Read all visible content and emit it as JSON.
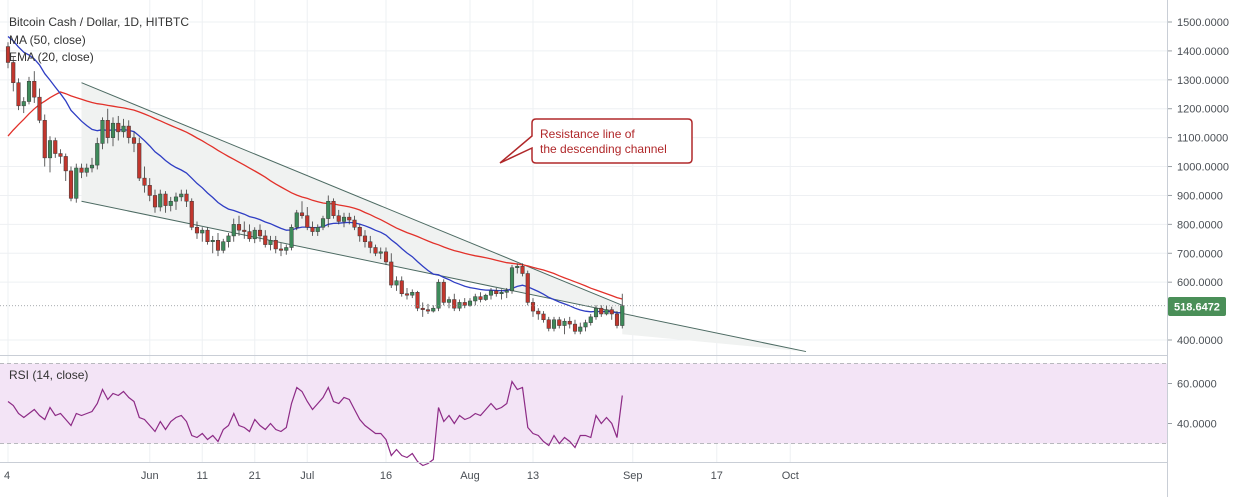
{
  "header": {
    "title": "Bitcoin Cash / Dollar, 1D, HITBTC",
    "ma_label": "MA (50, close)",
    "ema_label": "EMA (20, close)"
  },
  "rsi": {
    "label": "RSI (14, close)",
    "ticks": [
      "60.0000",
      "40.0000"
    ],
    "levels": [
      70,
      30
    ]
  },
  "annotation": {
    "line1": "Resistance line of",
    "line2": "the descending channel"
  },
  "colors": {
    "up": "#3d8a5a",
    "down": "#c2362d",
    "ma": "#e2312a",
    "ema": "#2f3ec4",
    "channel": "#4d6b63",
    "channel_fill": "#f0f2f1",
    "rsi": "#8d2b86",
    "rsi_band": "#f3e4f6",
    "callout": "#b0282a",
    "last_price_bg": "#4a8f58"
  },
  "chart_data": {
    "type": "candlestick",
    "title": "Bitcoin Cash / Dollar, 1D, HITBTC",
    "y_ticks": [
      "1500.0000",
      "1400.0000",
      "1300.0000",
      "1200.0000",
      "1100.0000",
      "1000.0000",
      "900.0000",
      "800.0000",
      "700.0000",
      "600.0000",
      "400.0000"
    ],
    "ylim": [
      360,
      1520
    ],
    "x_ticks": [
      {
        "label": "4",
        "day": 0
      },
      {
        "label": "Jun",
        "day": 27
      },
      {
        "label": "11",
        "day": 37
      },
      {
        "label": "21",
        "day": 47
      },
      {
        "label": "Jul",
        "day": 57
      },
      {
        "label": "16",
        "day": 72
      },
      {
        "label": "Aug",
        "day": 88
      },
      {
        "label": "13",
        "day": 100
      },
      {
        "label": "Sep",
        "day": 119
      },
      {
        "label": "17",
        "day": 135
      },
      {
        "label": "Oct",
        "day": 149
      }
    ],
    "last_price": "518.6472",
    "last_value": 518.6,
    "ohlc": [
      [
        1415,
        1430,
        1340,
        1360
      ],
      [
        1360,
        1380,
        1260,
        1290
      ],
      [
        1290,
        1305,
        1195,
        1210
      ],
      [
        1210,
        1240,
        1185,
        1225
      ],
      [
        1225,
        1310,
        1215,
        1295
      ],
      [
        1295,
        1330,
        1220,
        1240
      ],
      [
        1240,
        1270,
        1150,
        1160
      ],
      [
        1160,
        1180,
        1000,
        1030
      ],
      [
        1030,
        1105,
        980,
        1090
      ],
      [
        1090,
        1100,
        1030,
        1045
      ],
      [
        1045,
        1060,
        1010,
        1035
      ],
      [
        1035,
        1045,
        950,
        985
      ],
      [
        985,
        1000,
        880,
        890
      ],
      [
        890,
        1010,
        875,
        995
      ],
      [
        995,
        1010,
        960,
        980
      ],
      [
        980,
        1010,
        965,
        995
      ],
      [
        995,
        1030,
        980,
        1005
      ],
      [
        1005,
        1100,
        990,
        1080
      ],
      [
        1080,
        1170,
        1060,
        1160
      ],
      [
        1160,
        1200,
        1080,
        1100
      ],
      [
        1100,
        1170,
        1070,
        1150
      ],
      [
        1150,
        1175,
        1090,
        1120
      ],
      [
        1120,
        1165,
        1100,
        1140
      ],
      [
        1140,
        1160,
        1080,
        1100
      ],
      [
        1100,
        1120,
        1050,
        1080
      ],
      [
        1080,
        1100,
        950,
        960
      ],
      [
        960,
        1000,
        910,
        935
      ],
      [
        935,
        960,
        880,
        900
      ],
      [
        900,
        920,
        840,
        860
      ],
      [
        860,
        920,
        845,
        905
      ],
      [
        905,
        915,
        840,
        865
      ],
      [
        865,
        895,
        845,
        880
      ],
      [
        880,
        910,
        850,
        895
      ],
      [
        895,
        920,
        880,
        905
      ],
      [
        905,
        920,
        860,
        880
      ],
      [
        880,
        890,
        780,
        790
      ],
      [
        790,
        810,
        750,
        770
      ],
      [
        770,
        790,
        740,
        780
      ],
      [
        780,
        790,
        730,
        740
      ],
      [
        740,
        760,
        700,
        745
      ],
      [
        745,
        770,
        690,
        710
      ],
      [
        710,
        750,
        700,
        740
      ],
      [
        740,
        770,
        720,
        760
      ],
      [
        760,
        820,
        740,
        800
      ],
      [
        800,
        830,
        760,
        780
      ],
      [
        780,
        810,
        750,
        775
      ],
      [
        775,
        800,
        740,
        750
      ],
      [
        750,
        790,
        735,
        780
      ],
      [
        780,
        800,
        740,
        760
      ],
      [
        760,
        780,
        720,
        730
      ],
      [
        730,
        760,
        710,
        745
      ],
      [
        745,
        760,
        700,
        715
      ],
      [
        715,
        735,
        690,
        710
      ],
      [
        710,
        730,
        695,
        720
      ],
      [
        720,
        800,
        710,
        790
      ],
      [
        790,
        850,
        780,
        840
      ],
      [
        840,
        880,
        820,
        830
      ],
      [
        830,
        860,
        780,
        790
      ],
      [
        790,
        810,
        760,
        775
      ],
      [
        775,
        800,
        760,
        790
      ],
      [
        790,
        830,
        780,
        820
      ],
      [
        820,
        900,
        790,
        880
      ],
      [
        880,
        890,
        820,
        830
      ],
      [
        830,
        850,
        800,
        810
      ],
      [
        810,
        840,
        790,
        825
      ],
      [
        825,
        840,
        800,
        815
      ],
      [
        815,
        830,
        780,
        790
      ],
      [
        790,
        800,
        740,
        760
      ],
      [
        760,
        780,
        720,
        740
      ],
      [
        740,
        760,
        700,
        720
      ],
      [
        720,
        730,
        690,
        700
      ],
      [
        700,
        720,
        680,
        705
      ],
      [
        705,
        720,
        660,
        670
      ],
      [
        670,
        700,
        580,
        590
      ],
      [
        590,
        620,
        570,
        605
      ],
      [
        605,
        620,
        550,
        560
      ],
      [
        560,
        580,
        540,
        555
      ],
      [
        555,
        575,
        545,
        565
      ],
      [
        565,
        570,
        500,
        510
      ],
      [
        510,
        530,
        480,
        505
      ],
      [
        505,
        525,
        490,
        500
      ],
      [
        500,
        520,
        495,
        510
      ],
      [
        510,
        610,
        500,
        600
      ],
      [
        600,
        610,
        520,
        530
      ],
      [
        530,
        550,
        510,
        540
      ],
      [
        540,
        560,
        500,
        510
      ],
      [
        510,
        540,
        500,
        530
      ],
      [
        530,
        545,
        510,
        520
      ],
      [
        520,
        545,
        515,
        535
      ],
      [
        535,
        560,
        520,
        550
      ],
      [
        550,
        565,
        530,
        540
      ],
      [
        540,
        560,
        535,
        555
      ],
      [
        555,
        580,
        540,
        570
      ],
      [
        570,
        580,
        550,
        560
      ],
      [
        560,
        575,
        540,
        565
      ],
      [
        565,
        580,
        545,
        570
      ],
      [
        570,
        660,
        560,
        650
      ],
      [
        650,
        665,
        630,
        655
      ],
      [
        655,
        665,
        620,
        630
      ],
      [
        630,
        640,
        520,
        530
      ],
      [
        530,
        545,
        480,
        500
      ],
      [
        500,
        510,
        470,
        490
      ],
      [
        490,
        500,
        460,
        470
      ],
      [
        470,
        480,
        430,
        440
      ],
      [
        440,
        480,
        430,
        470
      ],
      [
        470,
        480,
        440,
        450
      ],
      [
        450,
        475,
        420,
        465
      ],
      [
        465,
        480,
        440,
        455
      ],
      [
        455,
        470,
        420,
        430
      ],
      [
        430,
        460,
        420,
        445
      ],
      [
        445,
        470,
        430,
        460
      ],
      [
        460,
        490,
        450,
        480
      ],
      [
        480,
        520,
        470,
        510
      ],
      [
        510,
        520,
        480,
        490
      ],
      [
        490,
        520,
        485,
        505
      ],
      [
        505,
        515,
        470,
        490
      ],
      [
        490,
        500,
        440,
        450
      ],
      [
        450,
        560,
        440,
        518.6
      ]
    ],
    "rsi_values": [
      51,
      49,
      45,
      43,
      45,
      47,
      44,
      42,
      48,
      44,
      45,
      42,
      39,
      45,
      44,
      45,
      46,
      50,
      57,
      52,
      55,
      54,
      56,
      53,
      51,
      43,
      42,
      39,
      36,
      41,
      37,
      41,
      43,
      44,
      41,
      34,
      33,
      35,
      32,
      34,
      31,
      37,
      39,
      45,
      39,
      38,
      36,
      42,
      39,
      37,
      40,
      37,
      36,
      38,
      50,
      58,
      56,
      51,
      47,
      50,
      53,
      58,
      51,
      50,
      53,
      52,
      47,
      42,
      39,
      37,
      35,
      35,
      32,
      24,
      27,
      24,
      23,
      25,
      21,
      19,
      20,
      22,
      48,
      41,
      44,
      40,
      44,
      42,
      43,
      45,
      44,
      47,
      50,
      47,
      48,
      50,
      61,
      57,
      58,
      38,
      35,
      34,
      31,
      29,
      34,
      30,
      33,
      31,
      28,
      34,
      34,
      33,
      44,
      40,
      43,
      40,
      33,
      54
    ]
  }
}
